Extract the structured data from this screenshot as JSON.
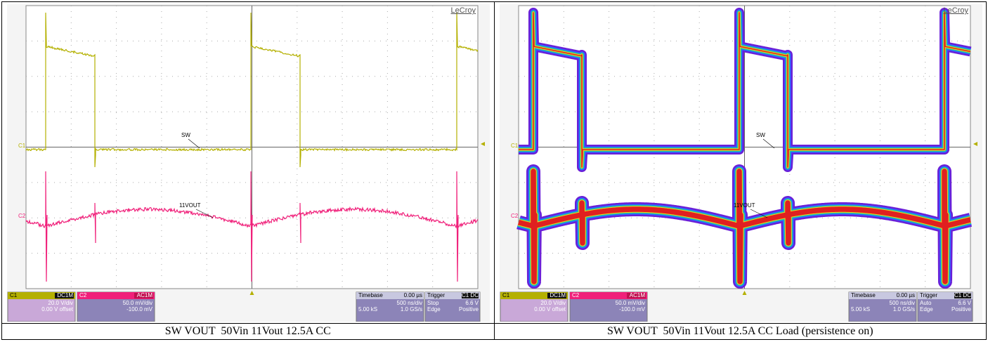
{
  "panels": [
    {
      "logo": "LeCroy",
      "trace_labels": {
        "sw": "SW",
        "vout": "11VOUT"
      },
      "ch1": {
        "name": "C1",
        "coupling": "DC1M",
        "scale": "20.0 V/div",
        "offset": "0.00 V offset"
      },
      "ch2": {
        "name": "C2",
        "coupling": "AC1M",
        "scale": "50.0 mV/div",
        "offset": "-100.0 mV"
      },
      "timebase": {
        "label": "Timebase",
        "delay": "0.00 µs",
        "scale": "500 ns/div",
        "samples": "5.00 kS",
        "rate": "1.0 GS/s"
      },
      "trigger": {
        "label": "Trigger",
        "source": "C1 DC",
        "mode": "Stop",
        "type": "Edge",
        "level": "6.6 V",
        "slope": "Positive"
      },
      "caption": "SW VOUT  50Vin 11Vout 12.5A CC"
    },
    {
      "logo": "LeCroy",
      "trace_labels": {
        "sw": "SW",
        "vout": "11VOUT"
      },
      "ch1": {
        "name": "C1",
        "coupling": "DC1M",
        "scale": "20.0 V/div",
        "offset": "0.00 V offset"
      },
      "ch2": {
        "name": "C2",
        "coupling": "AC1M",
        "scale": "50.0 mV/div",
        "offset": "-100.0 mV"
      },
      "timebase": {
        "label": "Timebase",
        "delay": "0.00 µs",
        "scale": "500 ns/div",
        "samples": "5.00 kS",
        "rate": "1.0 GS/s"
      },
      "trigger": {
        "label": "Trigger",
        "source": "C1 DC",
        "mode": "Auto",
        "type": "Edge",
        "level": "6.6 V",
        "slope": "Positive"
      },
      "caption": "SW VOUT  50Vin 11Vout 12.5A CC Load (persistence on)"
    }
  ]
}
